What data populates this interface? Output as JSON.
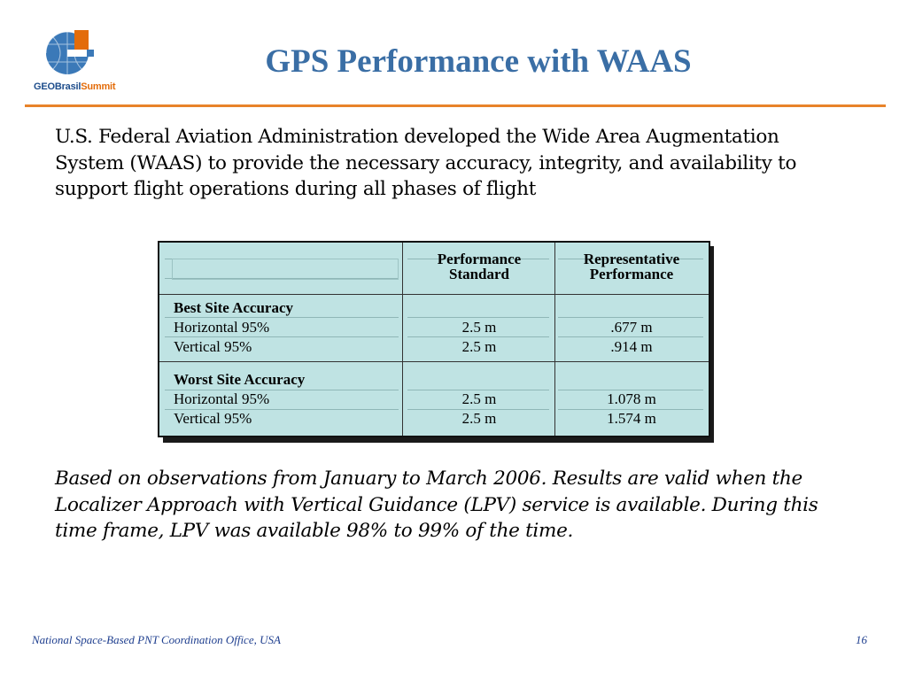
{
  "logo": {
    "text_main": "GEOBrasil",
    "text_accent": "Summit",
    "icon": "geobrasil-globe-logo"
  },
  "title": "GPS Performance with WAAS",
  "intro": "U.S. Federal Aviation Administration developed the Wide Area Augmentation System (WAAS) to provide the necessary accuracy, integrity, and availability to support flight operations during all phases of flight",
  "table": {
    "headers": [
      "",
      "Performance Standard",
      "Representative Performance"
    ],
    "header_lines": {
      "performance": [
        "Performance",
        "Standard"
      ],
      "representative": [
        "Representative",
        "Performance"
      ]
    },
    "sections": [
      {
        "title": "Best Site Accuracy",
        "rows": [
          {
            "label": "Horizontal 95%",
            "standard": "2.5 m",
            "representative": ".677 m"
          },
          {
            "label": "Vertical 95%",
            "standard": "2.5 m",
            "representative": ".914 m"
          }
        ]
      },
      {
        "title": "Worst Site Accuracy",
        "rows": [
          {
            "label": "Horizontal 95%",
            "standard": "2.5 m",
            "representative": "1.078 m"
          },
          {
            "label": "Vertical 95%",
            "standard": "2.5 m",
            "representative": "1.574 m"
          }
        ]
      }
    ]
  },
  "note": "Based on observations from January to March 2006.  Results are valid when the Localizer Approach with Vertical Guidance (LPV) service is available.  During this time frame, LPV was available 98% to 99% of the time.",
  "footer": {
    "left": "National Space-Based PNT Coordination Office, USA",
    "page": "16"
  },
  "colors": {
    "title": "#3a6ea5",
    "rule": "#e8832a",
    "table_bg": "#bfe3e3",
    "footer": "#1f3f8f"
  }
}
